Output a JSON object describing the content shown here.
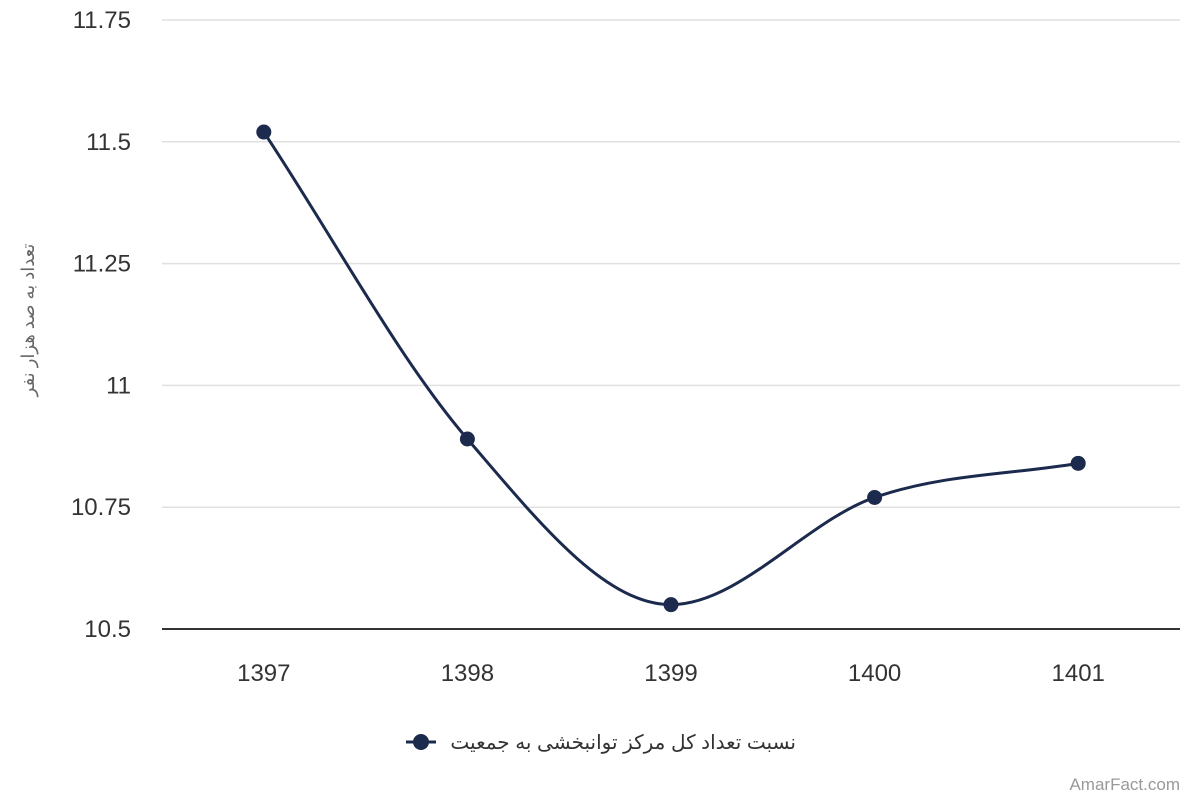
{
  "chart_data": {
    "type": "line",
    "title": "",
    "xlabel": "",
    "ylabel": "تعداد به صد هزار نفر",
    "categories": [
      "1397",
      "1398",
      "1399",
      "1400",
      "1401"
    ],
    "series": [
      {
        "name": "نسبت تعداد کل مرکز توانبخشی به جمعیت",
        "values": [
          11.52,
          10.89,
          10.55,
          10.77,
          10.84
        ],
        "color": "#1b2a4d"
      }
    ],
    "ylim": [
      10.5,
      11.75
    ],
    "yticks": [
      "10.5",
      "10.75",
      "11",
      "11.25",
      "11.5",
      "11.75"
    ],
    "grid": true,
    "legend_position": "bottom-center",
    "smooth": true
  },
  "credit": "AmarFact.com"
}
